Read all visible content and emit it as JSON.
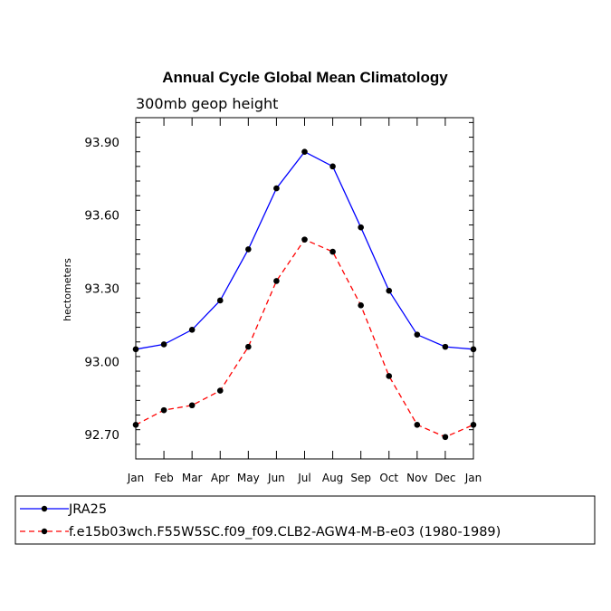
{
  "chart_data": {
    "type": "line",
    "title": "Annual Cycle Global Mean Climatology",
    "subtitle": "300mb geop height",
    "xlabel": "",
    "ylabel": "hectometers",
    "categories": [
      "Jan",
      "Feb",
      "Mar",
      "Apr",
      "May",
      "Jun",
      "Jul",
      "Aug",
      "Sep",
      "Oct",
      "Nov",
      "Dec",
      "Jan"
    ],
    "ylim": [
      92.6,
      94.0
    ],
    "yticks": [
      92.7,
      93.0,
      93.3,
      93.6,
      93.9
    ],
    "ytick_labels": [
      "92.70",
      "93.00",
      "93.30",
      "93.60",
      "93.90"
    ],
    "grid": false,
    "legend_position": "bottom",
    "series": [
      {
        "name": "JRA25",
        "color": "#0000ff",
        "line_style": "solid",
        "values": [
          93.05,
          93.07,
          93.13,
          93.25,
          93.46,
          93.71,
          93.86,
          93.8,
          93.55,
          93.29,
          93.11,
          93.06,
          93.05
        ]
      },
      {
        "name": "f.e15b03wch.F55W5SC.f09_f09.CLB2-AGW4-M-B-e03 (1980-1989)",
        "color": "#ff0000",
        "line_style": "dashed",
        "values": [
          92.74,
          92.8,
          92.82,
          92.88,
          93.06,
          93.33,
          93.5,
          93.45,
          93.23,
          92.94,
          92.74,
          92.69,
          92.74
        ]
      }
    ]
  }
}
